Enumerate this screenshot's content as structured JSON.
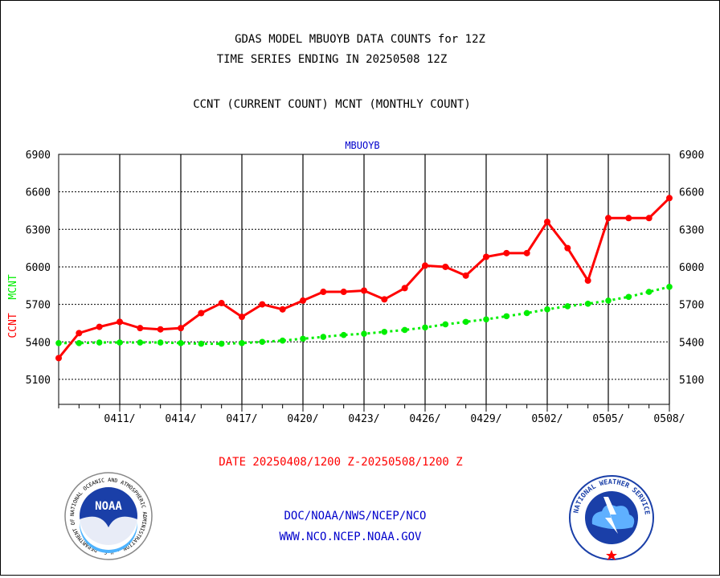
{
  "header": {
    "title_line1": "GDAS MODEL MBUOYB DATA COUNTS for 12Z",
    "title_line2": "TIME SERIES ENDING IN 20250508 12Z",
    "title_line3": "CCNT (CURRENT COUNT) MCNT (MONTHLY COUNT)"
  },
  "footer": {
    "date_range": "DATE 20250408/1200 Z-20250508/1200 Z",
    "org_line": "DOC/NOAA/NWS/NCEP/NCO",
    "url_line": "WWW.NCO.NCEP.NOAA.GOV"
  },
  "logos": {
    "left_text": "NOAA",
    "left_ring_text": "NATIONAL OCEANIC AND ATMOSPHERIC ADMINISTRATION · U.S. DEPARTMENT OF COMMERCE",
    "right_ring_text": "NATIONAL WEATHER SERVICE"
  },
  "colors": {
    "ccnt": "#ff0000",
    "mcnt": "#00ee00",
    "title": "#000000",
    "panel_label": "#0000cc",
    "footer_links": "#0000cc",
    "date_label": "#ff0000"
  },
  "chart_data": {
    "type": "line",
    "panel_label": "MBUOYB",
    "ylabel_ccnt": "CCNT",
    "ylabel_mcnt": "MCNT",
    "ylim": [
      4900,
      6900
    ],
    "yticks": [
      5100,
      5400,
      5700,
      6000,
      6300,
      6600,
      6900
    ],
    "xlim": [
      "2025-04-08",
      "2025-05-08"
    ],
    "x_tick_labels": [
      "0411/",
      "0414/",
      "0417/",
      "0420/",
      "0423/",
      "0426/",
      "0429/",
      "0502/",
      "0505/",
      "0508/"
    ],
    "x_tick_dates": [
      "2025-04-11",
      "2025-04-14",
      "2025-04-17",
      "2025-04-20",
      "2025-04-23",
      "2025-04-26",
      "2025-04-29",
      "2025-05-02",
      "2025-05-05",
      "2025-05-08"
    ],
    "grid": true,
    "x": [
      "2025-04-08",
      "2025-04-09",
      "2025-04-10",
      "2025-04-11",
      "2025-04-12",
      "2025-04-13",
      "2025-04-14",
      "2025-04-15",
      "2025-04-16",
      "2025-04-17",
      "2025-04-18",
      "2025-04-19",
      "2025-04-20",
      "2025-04-21",
      "2025-04-22",
      "2025-04-23",
      "2025-04-24",
      "2025-04-25",
      "2025-04-26",
      "2025-04-27",
      "2025-04-28",
      "2025-04-29",
      "2025-04-30",
      "2025-05-01",
      "2025-05-02",
      "2025-05-03",
      "2025-05-04",
      "2025-05-05",
      "2025-05-06",
      "2025-05-07",
      "2025-05-08"
    ],
    "series": [
      {
        "name": "CCNT",
        "values": [
          5270,
          5470,
          5520,
          5560,
          5510,
          5500,
          5510,
          5630,
          5710,
          5600,
          5700,
          5660,
          5730,
          5800,
          5800,
          5810,
          5740,
          5830,
          6010,
          6000,
          5930,
          6080,
          6110,
          6110,
          6360,
          6150,
          5890,
          6390,
          6390,
          6390,
          6550
        ]
      },
      {
        "name": "MCNT",
        "values": [
          5390,
          5390,
          5395,
          5395,
          5395,
          5395,
          5390,
          5385,
          5385,
          5390,
          5400,
          5410,
          5425,
          5440,
          5455,
          5465,
          5480,
          5495,
          5515,
          5540,
          5560,
          5580,
          5605,
          5630,
          5660,
          5685,
          5705,
          5730,
          5760,
          5800,
          5840
        ]
      }
    ]
  }
}
